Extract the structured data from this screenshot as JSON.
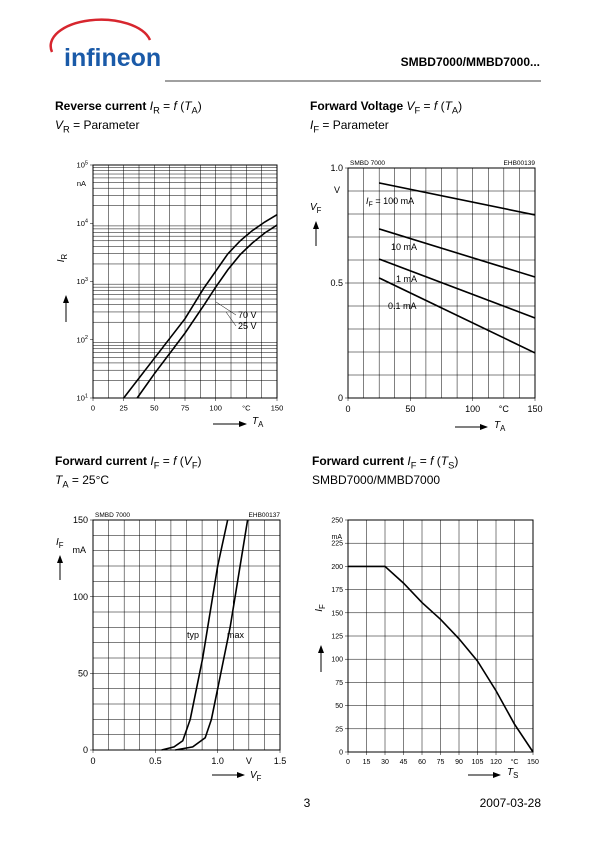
{
  "header": {
    "logo": "infineon",
    "title": "SMBD7000/MMBD7000..."
  },
  "chart_data": [
    {
      "type": "line",
      "title": [
        {
          "text": "Reverse current",
          "style": "bold"
        },
        {
          "text": " "
        },
        {
          "text": "I",
          "style": "italic"
        },
        {
          "text": "R",
          "style": "sub"
        },
        {
          "text": " = "
        },
        {
          "text": "f",
          "style": "italic"
        },
        {
          "text": " ("
        },
        {
          "text": "T",
          "style": "italic"
        },
        {
          "text": "A",
          "style": "sub"
        },
        {
          "text": ")"
        }
      ],
      "subtitle": [
        {
          "text": "V",
          "style": "italic"
        },
        {
          "text": "R",
          "style": "sub"
        },
        {
          "text": " = Parameter"
        }
      ],
      "xlabel": [
        {
          "text": "T",
          "style": "italic"
        },
        {
          "text": "A",
          "style": "sub"
        }
      ],
      "ylabel": [
        {
          "text": "I",
          "style": "italic"
        },
        {
          "text": "R",
          "style": "sub"
        }
      ],
      "x_unit": "°C",
      "y_unit": "nA",
      "xlim": [
        0,
        150
      ],
      "xticks": [
        0,
        25,
        50,
        75,
        100,
        150
      ],
      "log_y": true,
      "ylim": [
        10,
        100000
      ],
      "yticks": [
        {
          "value": 10,
          "label": "10",
          "exponent": "1"
        },
        {
          "value": 100,
          "label": "10",
          "exponent": "2"
        },
        {
          "value": 1000,
          "label": "10",
          "exponent": "3"
        },
        {
          "value": 10000,
          "label": "10",
          "exponent": "4"
        },
        {
          "value": 100000,
          "label": "10",
          "exponent": "5"
        }
      ],
      "grid": true,
      "x_grid_step": 12.5,
      "minor_grid": true,
      "color": "#000000",
      "series": [
        {
          "name": "70 V",
          "x": [
            25,
            50,
            75,
            90,
            100,
            110,
            120,
            130,
            140,
            150
          ],
          "values": [
            10,
            48,
            230,
            750,
            1500,
            3000,
            5000,
            7500,
            10500,
            14000
          ]
        },
        {
          "name": "25 V",
          "x": [
            36,
            50,
            75,
            90,
            100,
            110,
            120,
            130,
            140,
            150
          ],
          "values": [
            10,
            26,
            130,
            380,
            800,
            1600,
            2900,
            4600,
            6800,
            9300
          ]
        }
      ]
    },
    {
      "type": "line",
      "title": [
        {
          "text": "Forward Voltage",
          "style": "bold"
        },
        {
          "text": " "
        },
        {
          "text": "V",
          "style": "italic"
        },
        {
          "text": "F",
          "style": "sub"
        },
        {
          "text": " = "
        },
        {
          "text": "f",
          "style": "italic"
        },
        {
          "text": " ("
        },
        {
          "text": "T",
          "style": "italic"
        },
        {
          "text": "A",
          "style": "sub"
        },
        {
          "text": ")"
        }
      ],
      "subtitle": [
        {
          "text": "I",
          "style": "italic"
        },
        {
          "text": "F",
          "style": "sub"
        },
        {
          "text": " = Parameter"
        }
      ],
      "plot_notes": [
        "SMBD 7000",
        "EHB00139"
      ],
      "xlabel": [
        {
          "text": "T",
          "style": "italic"
        },
        {
          "text": "A",
          "style": "sub"
        }
      ],
      "ylabel": [
        {
          "text": "V",
          "style": "italic"
        },
        {
          "text": "F",
          "style": "sub"
        }
      ],
      "x_unit": "°C",
      "y_unit": "V",
      "xlim": [
        0,
        150
      ],
      "xticks": [
        0,
        50,
        100,
        150
      ],
      "ylim": [
        0,
        1
      ],
      "yticks": [
        0,
        0.5,
        {
          "value": 1,
          "label": "1.0"
        }
      ],
      "grid": true,
      "x_grid_step": 12.5,
      "y_grid_step": 0.1,
      "color": "#000000",
      "series_label_prefix": [
        {
          "text": "I",
          "style": "italic"
        },
        {
          "text": "F",
          "style": "sub"
        },
        {
          "text": " = "
        }
      ],
      "series": [
        {
          "name": "100 mA",
          "x": [
            25,
            150
          ],
          "values": [
            0.935,
            0.796
          ]
        },
        {
          "name": "10 mA",
          "x": [
            25,
            150
          ],
          "values": [
            0.735,
            0.526
          ]
        },
        {
          "name": "1 mA",
          "x": [
            25,
            150
          ],
          "values": [
            0.604,
            0.348
          ]
        },
        {
          "name": "0.1 mA",
          "x": [
            25,
            150
          ],
          "values": [
            0.522,
            0.196
          ]
        }
      ]
    },
    {
      "type": "line",
      "title": [
        {
          "text": "Forward current",
          "style": "bold"
        },
        {
          "text": " "
        },
        {
          "text": "I",
          "style": "italic"
        },
        {
          "text": "F",
          "style": "sub"
        },
        {
          "text": " = "
        },
        {
          "text": "f",
          "style": "italic"
        },
        {
          "text": " ("
        },
        {
          "text": "V",
          "style": "italic"
        },
        {
          "text": "F",
          "style": "sub"
        },
        {
          "text": ")"
        }
      ],
      "subtitle": [
        {
          "text": "T",
          "style": "italic"
        },
        {
          "text": "A",
          "style": "sub"
        },
        {
          "text": " = 25°C"
        }
      ],
      "plot_notes": [
        "SMBD 7000",
        "EHB00137"
      ],
      "xlabel": [
        {
          "text": "V",
          "style": "italic"
        },
        {
          "text": "F",
          "style": "sub"
        }
      ],
      "ylabel": [
        {
          "text": "I",
          "style": "italic"
        },
        {
          "text": "F",
          "style": "sub"
        }
      ],
      "x_unit": "V",
      "y_unit": "mA",
      "xlim": [
        0,
        1.5
      ],
      "xticks": [
        0,
        0.5,
        {
          "value": 1,
          "label": "1.0"
        },
        1.5
      ],
      "ylim": [
        0,
        150
      ],
      "yticks": [
        0,
        50,
        100,
        150
      ],
      "grid": true,
      "x_grid_step": 0.125,
      "y_grid_step": 10,
      "color": "#000000",
      "series": [
        {
          "name": "typ",
          "x": [
            0.55,
            0.65,
            0.72,
            0.78,
            0.83,
            0.88,
            0.93,
            1.0,
            1.08
          ],
          "values": [
            0,
            2,
            6,
            20,
            40,
            60,
            85,
            120,
            150
          ]
        },
        {
          "name": "max",
          "x": [
            0.66,
            0.8,
            0.9,
            0.95,
            1.0,
            1.05,
            1.1,
            1.17,
            1.24
          ],
          "values": [
            0,
            2,
            8,
            20,
            40,
            60,
            80,
            115,
            150
          ]
        }
      ]
    },
    {
      "type": "line",
      "title": [
        {
          "text": "Forward current",
          "style": "bold"
        },
        {
          "text": " "
        },
        {
          "text": "I",
          "style": "italic"
        },
        {
          "text": "F",
          "style": "sub"
        },
        {
          "text": " = "
        },
        {
          "text": "f",
          "style": "italic"
        },
        {
          "text": " ("
        },
        {
          "text": "T",
          "style": "italic"
        },
        {
          "text": "S",
          "style": "sub"
        },
        {
          "text": ")"
        }
      ],
      "subtitle": [
        {
          "text": "SMBD7000/MMBD7000"
        }
      ],
      "xlabel": [
        {
          "text": "T",
          "style": "italic"
        },
        {
          "text": "S",
          "style": "sub"
        }
      ],
      "ylabel": [
        {
          "text": "I",
          "style": "italic"
        },
        {
          "text": "F",
          "style": "sub"
        }
      ],
      "x_unit": "°C",
      "y_unit": "mA",
      "xlim": [
        0,
        150
      ],
      "xticks": [
        0,
        15,
        30,
        45,
        60,
        75,
        90,
        105,
        120,
        150
      ],
      "ylim": [
        0,
        250
      ],
      "yticks": [
        0,
        25,
        50,
        75,
        100,
        125,
        150,
        175,
        200,
        225,
        250
      ],
      "grid": true,
      "x_grid_step": 15,
      "y_grid_step": 25,
      "color": "#000000",
      "series": [
        {
          "x": [
            0,
            30,
            45,
            60,
            75,
            90,
            105,
            120,
            135,
            150
          ],
          "values": [
            200,
            200,
            182,
            161,
            143,
            122,
            98,
            66,
            30,
            0
          ]
        }
      ]
    }
  ],
  "footer": {
    "page": "3",
    "date": "2007-03-28"
  }
}
